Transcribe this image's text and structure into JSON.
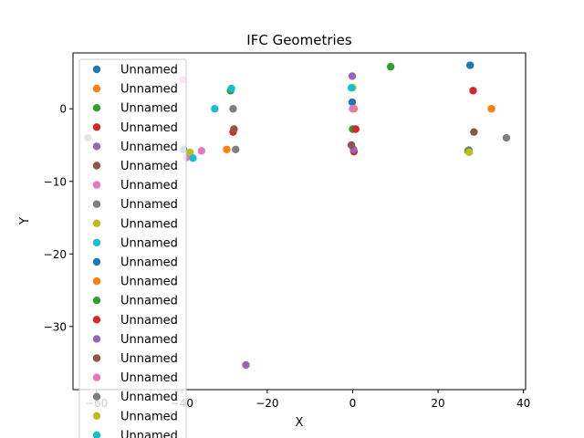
{
  "chart_data": {
    "type": "scatter",
    "title": "IFC Geometries",
    "xlabel": "X",
    "ylabel": "Y",
    "xlim": [
      -65.5,
      40.5
    ],
    "ylim": [
      -38.7,
      7.7
    ],
    "xticks": [
      -60,
      -40,
      -20,
      0,
      20,
      40
    ],
    "yticks": [
      0,
      -10,
      -20,
      -30
    ],
    "xtick_labels": [
      "−60",
      "−40",
      "−20",
      "0",
      "20",
      "40"
    ],
    "ytick_labels": [
      "0",
      "−10",
      "−20",
      "−30"
    ],
    "grid": false,
    "legend": {
      "placement": "upper-left",
      "visible_entries": 20
    },
    "palette": [
      "#1f77b4",
      "#ff7f0e",
      "#2ca02c",
      "#d62728",
      "#9467bd",
      "#8c564b",
      "#e377c2",
      "#7f7f7f",
      "#bcbd22",
      "#17becf"
    ],
    "series": [
      {
        "name": "Unnamed",
        "color": "#1f77b4",
        "points": [
          [
            27.5,
            6.0
          ],
          [
            -0.1,
            0.9
          ],
          [
            -39.6,
            -5.6
          ]
        ]
      },
      {
        "name": "Unnamed",
        "color": "#ff7f0e",
        "points": [
          [
            32.5,
            0.0
          ],
          [
            -29.5,
            -5.6
          ],
          [
            0.3,
            0.0
          ]
        ]
      },
      {
        "name": "Unnamed",
        "color": "#2ca02c",
        "points": [
          [
            8.9,
            5.8
          ],
          [
            -28.6,
            2.5
          ],
          [
            0.0,
            -2.8
          ],
          [
            27.2,
            -5.7
          ]
        ]
      },
      {
        "name": "Unnamed",
        "color": "#d62728",
        "points": [
          [
            28.2,
            2.5
          ],
          [
            -28.0,
            -3.2
          ],
          [
            0.7,
            -2.8
          ],
          [
            0.3,
            -5.9
          ]
        ]
      },
      {
        "name": "Unnamed",
        "color": "#9467bd",
        "points": [
          [
            -0.1,
            4.5
          ],
          [
            -25.0,
            -35.3
          ],
          [
            0.2,
            -5.6
          ]
        ]
      },
      {
        "name": "Unnamed",
        "color": "#8c564b",
        "points": [
          [
            28.4,
            -3.2
          ],
          [
            -27.8,
            -2.8
          ],
          [
            -0.3,
            -5.0
          ]
        ]
      },
      {
        "name": "Unnamed",
        "color": "#e377c2",
        "points": [
          [
            -39.8,
            4.0
          ],
          [
            -38.9,
            -6.7
          ],
          [
            -35.4,
            -5.8
          ],
          [
            0.0,
            0.0
          ]
        ]
      },
      {
        "name": "Unnamed",
        "color": "#7f7f7f",
        "points": [
          [
            36.0,
            -4.0
          ],
          [
            -28.0,
            0.0
          ],
          [
            -27.4,
            -5.6
          ],
          [
            -62.0,
            -4.0
          ],
          [
            27.0,
            -5.8
          ]
        ]
      },
      {
        "name": "Unnamed",
        "color": "#bcbd22",
        "points": [
          [
            -38.1,
            -6.0
          ],
          [
            0.0,
            2.9
          ],
          [
            27.3,
            -6.0
          ]
        ]
      },
      {
        "name": "Unnamed",
        "color": "#17becf",
        "points": [
          [
            -32.3,
            0.0
          ],
          [
            -28.4,
            2.8
          ],
          [
            -37.4,
            -6.8
          ],
          [
            -0.3,
            2.9
          ]
        ]
      }
    ]
  }
}
